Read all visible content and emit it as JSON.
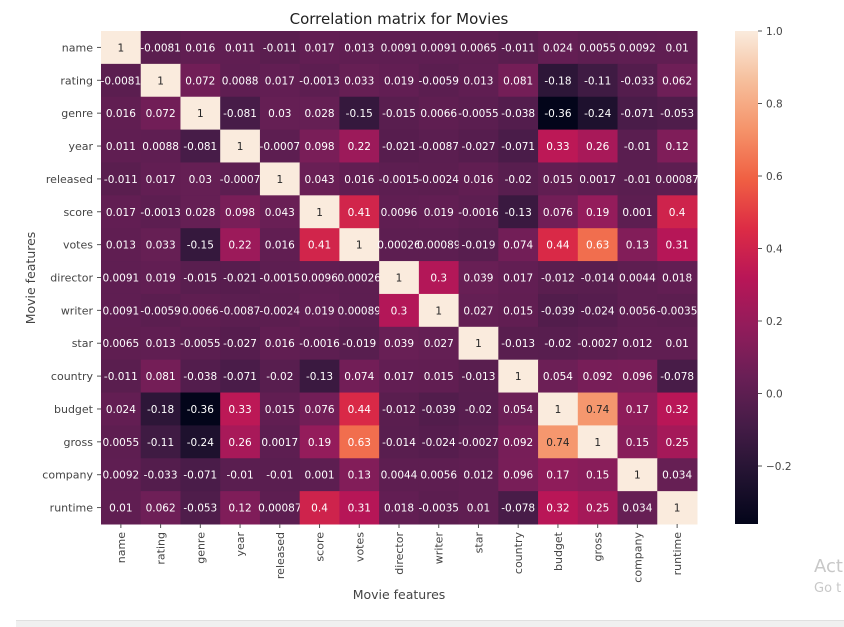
{
  "chart_data": {
    "type": "heatmap",
    "title": "Correlation matrix for Movies",
    "xlabel": "Movie features",
    "ylabel": "Movie features",
    "labels": [
      "name",
      "rating",
      "genre",
      "year",
      "released",
      "score",
      "votes",
      "director",
      "writer",
      "star",
      "country",
      "budget",
      "gross",
      "company",
      "runtime"
    ],
    "matrix": [
      [
        "1",
        "-0.0081",
        "0.016",
        "0.011",
        "-0.011",
        "0.017",
        "0.013",
        "0.0091",
        "0.0091",
        "0.0065",
        "-0.011",
        "0.024",
        "0.0055",
        "0.0092",
        "0.01"
      ],
      [
        "-0.0081",
        "1",
        "0.072",
        "0.0088",
        "0.017",
        "-0.0013",
        "0.033",
        "0.019",
        "-0.0059",
        "0.013",
        "0.081",
        "-0.18",
        "-0.11",
        "-0.033",
        "0.062"
      ],
      [
        "0.016",
        "0.072",
        "1",
        "-0.081",
        "0.03",
        "0.028",
        "-0.15",
        "-0.015",
        "0.0066",
        "-0.0055",
        "-0.038",
        "-0.36",
        "-0.24",
        "-0.071",
        "-0.053"
      ],
      [
        "0.011",
        "0.0088",
        "-0.081",
        "1",
        "-0.0007",
        "0.098",
        "0.22",
        "-0.021",
        "-0.0087",
        "-0.027",
        "-0.071",
        "0.33",
        "0.26",
        "-0.01",
        "0.12"
      ],
      [
        "-0.011",
        "0.017",
        "0.03",
        "-0.0007",
        "1",
        "0.043",
        "0.016",
        "-0.0015",
        "-0.0024",
        "0.016",
        "-0.02",
        "0.015",
        "0.0017",
        "-0.01",
        "0.00087"
      ],
      [
        "0.017",
        "-0.0013",
        "0.028",
        "0.098",
        "0.043",
        "1",
        "0.41",
        "0.0096",
        "0.019",
        "-0.0016",
        "-0.13",
        "0.076",
        "0.19",
        "0.001",
        "0.4"
      ],
      [
        "0.013",
        "0.033",
        "-0.15",
        "0.22",
        "0.016",
        "0.41",
        "1",
        "0.00026",
        "0.00089",
        "-0.019",
        "0.074",
        "0.44",
        "0.63",
        "0.13",
        "0.31"
      ],
      [
        "0.0091",
        "0.019",
        "-0.015",
        "-0.021",
        "-0.0015",
        "0.0096",
        "0.00026",
        "1",
        "0.3",
        "0.039",
        "0.017",
        "-0.012",
        "-0.014",
        "0.0044",
        "0.018"
      ],
      [
        "0.0091",
        "-0.0059",
        "0.0066",
        "-0.0087",
        "-0.0024",
        "0.019",
        "0.00089",
        "0.3",
        "1",
        "0.027",
        "0.015",
        "-0.039",
        "-0.024",
        "0.0056",
        "-0.0035"
      ],
      [
        "0.0065",
        "0.013",
        "-0.0055",
        "-0.027",
        "0.016",
        "-0.0016",
        "-0.019",
        "0.039",
        "0.027",
        "1",
        "-0.013",
        "-0.02",
        "-0.0027",
        "0.012",
        "0.01"
      ],
      [
        "-0.011",
        "0.081",
        "-0.038",
        "-0.071",
        "-0.02",
        "-0.13",
        "0.074",
        "0.017",
        "0.015",
        "-0.013",
        "1",
        "0.054",
        "0.092",
        "0.096",
        "-0.078"
      ],
      [
        "0.024",
        "-0.18",
        "-0.36",
        "0.33",
        "0.015",
        "0.076",
        "0.44",
        "-0.012",
        "-0.039",
        "-0.02",
        "0.054",
        "1",
        "0.74",
        "0.17",
        "0.32"
      ],
      [
        "0.0055",
        "-0.11",
        "-0.24",
        "0.26",
        "0.0017",
        "0.19",
        "0.63",
        "-0.014",
        "-0.024",
        "-0.0027",
        "0.092",
        "0.74",
        "1",
        "0.15",
        "0.25"
      ],
      [
        "0.0092",
        "-0.033",
        "-0.071",
        "-0.01",
        "-0.01",
        "0.001",
        "0.13",
        "0.0044",
        "0.0056",
        "0.012",
        "0.096",
        "0.17",
        "0.15",
        "1",
        "0.034"
      ],
      [
        "0.01",
        "0.062",
        "-0.053",
        "0.12",
        "0.00087",
        "0.4",
        "0.31",
        "0.018",
        "-0.0035",
        "0.01",
        "-0.078",
        "0.32",
        "0.25",
        "0.034",
        "1"
      ]
    ],
    "colorbar": {
      "vmin": -0.36,
      "vmax": 1.0,
      "ticks": [
        "1.0",
        "0.8",
        "0.6",
        "0.4",
        "0.2",
        "0.0",
        "−0.2"
      ],
      "tick_values": [
        1.0,
        0.8,
        0.6,
        0.4,
        0.2,
        0.0,
        -0.2
      ],
      "colormap": "rocket"
    }
  },
  "watermark": {
    "line1": "Act",
    "line2": "Go t"
  }
}
